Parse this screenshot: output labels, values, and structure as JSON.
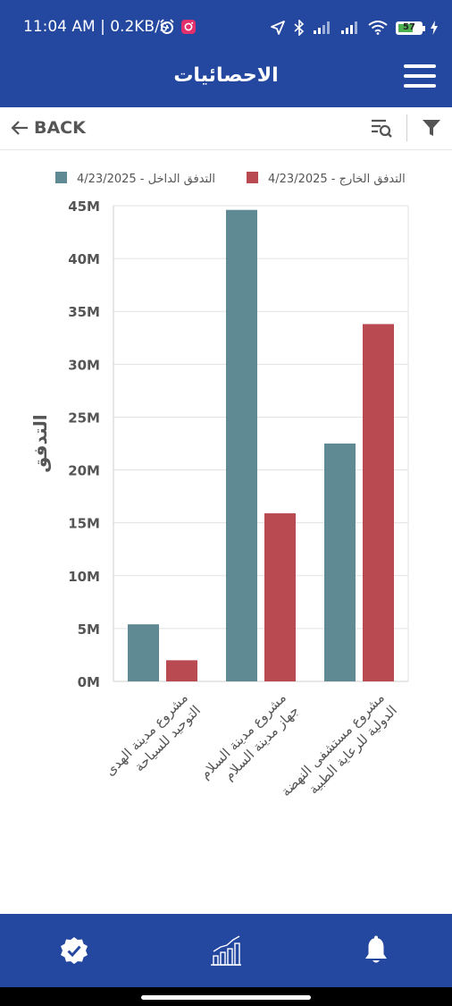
{
  "status_bar": {
    "time": "11:04 AM | 0.2KB/s",
    "battery": "57",
    "icons": [
      "alarm-icon",
      "instagram-icon",
      "location-icon",
      "bluetooth-icon",
      "signal-icon",
      "signal-icon",
      "wifi-icon",
      "battery-icon",
      "charging-icon"
    ]
  },
  "header": {
    "title": "الاحصائيات",
    "menu_icon": "hamburger-menu-icon"
  },
  "toolbar": {
    "back_label": "BACK",
    "back_icon": "arrow-left-icon",
    "search_icon": "list-search-icon",
    "filter_icon": "filter-icon"
  },
  "chart_data": {
    "type": "bar",
    "ylabel": "التدفق",
    "ylim": [
      0,
      45000000
    ],
    "yticks": [
      "0M",
      "5M",
      "10M",
      "15M",
      "20M",
      "25M",
      "30M",
      "35M",
      "40M",
      "45M"
    ],
    "categories": [
      [
        "مشروع مدينة الهدى",
        "التوحيد للسياحة"
      ],
      [
        "مشروع مدينة السلام",
        "جهاز مدينة السلام"
      ],
      [
        "مشروع مستشفى النهضة",
        "الدولية للرعاية الطبية"
      ]
    ],
    "series": [
      {
        "name": "التدفق الداخل - 4/23/2025",
        "color": "#5f8a93",
        "values": [
          5400000,
          44600000,
          22500000
        ]
      },
      {
        "name": "التدفق الخارج - 4/23/2025",
        "color": "#b94a52",
        "values": [
          2000000,
          15900000,
          33800000
        ]
      }
    ],
    "legend": "top",
    "grid": true
  },
  "bottom_nav": {
    "items": [
      {
        "icon": "verified-check-icon"
      },
      {
        "icon": "bar-chart-icon"
      },
      {
        "icon": "bell-icon"
      }
    ]
  }
}
